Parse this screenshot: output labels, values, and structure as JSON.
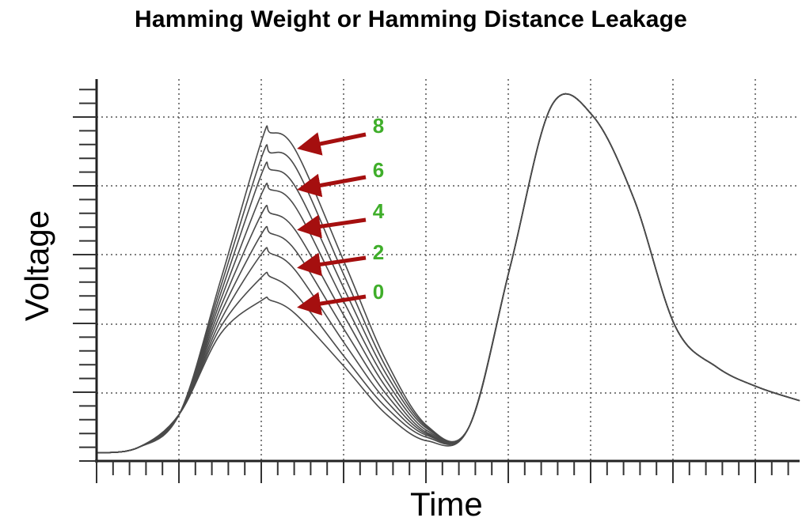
{
  "chart_data": {
    "type": "line",
    "title": "Hamming Weight or Hamming Distance Leakage",
    "xlabel": "Time",
    "ylabel": "Voltage",
    "grid": true,
    "legend": "none",
    "xlim": [
      0,
      8.5
    ],
    "ylim": [
      0,
      5.7
    ],
    "series": [
      {
        "x": [
          0,
          0.5,
          1,
          1.5,
          2,
          2.1,
          2.4,
          3,
          3.5,
          4,
          4.5,
          5,
          5.5,
          6,
          6.5,
          7,
          7.5,
          8,
          8.5
        ],
        "y": [
          0.12,
          0.2,
          0.7,
          1.9,
          2.4,
          2.4,
          2.2,
          1.4,
          0.7,
          0.3,
          0.5,
          2.9,
          5.3,
          5.15,
          3.9,
          2.0,
          1.4,
          1.1,
          0.9
        ]
      },
      {
        "x": [
          0,
          0.5,
          1,
          1.5,
          2,
          2.1,
          2.4,
          3,
          3.5,
          4,
          4.5,
          5,
          5.5,
          6,
          6.5,
          7,
          7.5,
          8,
          8.5
        ],
        "y": [
          0.12,
          0.2,
          0.7,
          2.0,
          2.75,
          2.75,
          2.5,
          1.55,
          0.8,
          0.35,
          0.5,
          2.9,
          5.3,
          5.15,
          3.9,
          2.0,
          1.4,
          1.1,
          0.9
        ]
      },
      {
        "x": [
          0,
          0.5,
          1,
          1.5,
          2,
          2.1,
          2.4,
          3,
          3.5,
          4,
          4.5,
          5,
          5.5,
          6,
          6.5,
          7,
          7.5,
          8,
          8.5
        ],
        "y": [
          0.12,
          0.2,
          0.7,
          2.1,
          3.1,
          3.1,
          2.85,
          1.75,
          0.9,
          0.38,
          0.5,
          2.9,
          5.3,
          5.15,
          3.9,
          2.0,
          1.4,
          1.1,
          0.9
        ]
      },
      {
        "x": [
          0,
          0.5,
          1,
          1.5,
          2,
          2.1,
          2.4,
          3,
          3.5,
          4,
          4.5,
          5,
          5.5,
          6,
          6.5,
          7,
          7.5,
          8,
          8.5
        ],
        "y": [
          0.12,
          0.2,
          0.7,
          2.2,
          3.4,
          3.4,
          3.15,
          1.95,
          1.0,
          0.4,
          0.5,
          2.9,
          5.3,
          5.15,
          3.9,
          2.0,
          1.4,
          1.1,
          0.9
        ]
      },
      {
        "x": [
          0,
          0.5,
          1,
          1.5,
          2,
          2.1,
          2.4,
          3,
          3.5,
          4,
          4.5,
          5,
          5.5,
          6,
          6.5,
          7,
          7.5,
          8,
          8.5
        ],
        "y": [
          0.12,
          0.2,
          0.7,
          2.3,
          3.7,
          3.7,
          3.45,
          2.15,
          1.1,
          0.42,
          0.5,
          2.9,
          5.3,
          5.15,
          3.9,
          2.0,
          1.4,
          1.1,
          0.9
        ]
      },
      {
        "x": [
          0,
          0.5,
          1,
          1.5,
          2,
          2.1,
          2.4,
          3,
          3.5,
          4,
          4.5,
          5,
          5.5,
          6,
          6.5,
          7,
          7.5,
          8,
          8.5
        ],
        "y": [
          0.12,
          0.2,
          0.7,
          2.4,
          4.0,
          4.05,
          3.8,
          2.35,
          1.2,
          0.45,
          0.5,
          2.9,
          5.3,
          5.15,
          3.9,
          2.0,
          1.4,
          1.1,
          0.9
        ]
      },
      {
        "x": [
          0,
          0.5,
          1,
          1.5,
          2,
          2.1,
          2.4,
          3,
          3.5,
          4,
          4.5,
          5,
          5.5,
          6,
          6.5,
          7,
          7.5,
          8,
          8.5
        ],
        "y": [
          0.12,
          0.2,
          0.7,
          2.5,
          4.3,
          4.35,
          4.1,
          2.55,
          1.3,
          0.48,
          0.5,
          2.9,
          5.3,
          5.15,
          3.9,
          2.0,
          1.4,
          1.1,
          0.9
        ]
      },
      {
        "x": [
          0,
          0.5,
          1,
          1.5,
          2,
          2.1,
          2.4,
          3,
          3.5,
          4,
          4.5,
          5,
          5.5,
          6,
          6.5,
          7,
          7.5,
          8,
          8.5
        ],
        "y": [
          0.12,
          0.2,
          0.7,
          2.6,
          4.55,
          4.6,
          4.4,
          2.75,
          1.4,
          0.5,
          0.5,
          2.9,
          5.3,
          5.15,
          3.9,
          2.0,
          1.4,
          1.1,
          0.9
        ]
      },
      {
        "x": [
          0,
          0.5,
          1,
          1.5,
          2,
          2.1,
          2.4,
          3,
          3.5,
          4,
          4.5,
          5,
          5.5,
          6,
          6.5,
          7,
          7.5,
          8,
          8.5
        ],
        "y": [
          0.12,
          0.2,
          0.7,
          2.7,
          4.8,
          4.9,
          4.65,
          2.95,
          1.5,
          0.52,
          0.5,
          2.9,
          5.3,
          5.15,
          3.9,
          2.0,
          1.4,
          1.1,
          0.9
        ]
      }
    ],
    "annotations": [
      {
        "text": "8",
        "color": "#3fae2a"
      },
      {
        "text": "6",
        "color": "#3fae2a"
      },
      {
        "text": "4",
        "color": "#3fae2a"
      },
      {
        "text": "2",
        "color": "#3fae2a"
      },
      {
        "text": "0",
        "color": "#3fae2a"
      }
    ],
    "arrow_color": "#a50f0f",
    "label_color": "#3fae2a"
  }
}
